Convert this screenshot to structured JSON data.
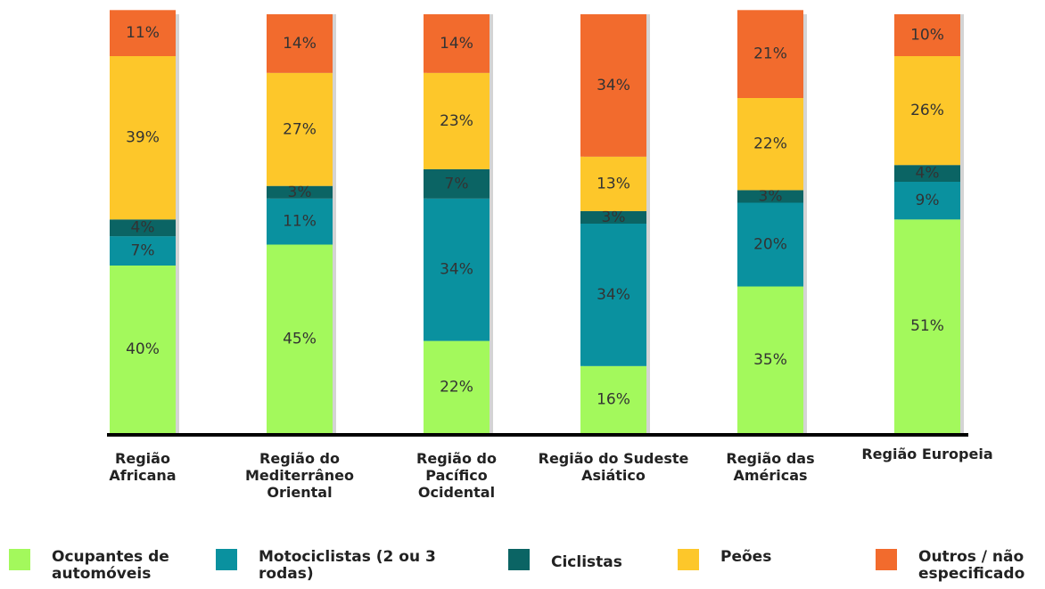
{
  "chart_data": {
    "type": "stacked_bar",
    "categories": [
      "Região Africana",
      "Região do Mediterrâneo Oriental",
      "Região do Pacífico Ocidental",
      "Região do Sudeste Asiático",
      "Região das Américas",
      "Região Europeia"
    ],
    "series": [
      {
        "name": "Ocupantes de automóveis",
        "color": "#a3f95c",
        "values": [
          40,
          45,
          22,
          16,
          35,
          51
        ],
        "value_labels": [
          "40%",
          "45%",
          "22%",
          "16%",
          "35%",
          "51%"
        ]
      },
      {
        "name": "Motociclistas (2 ou 3 rodas)",
        "color": "#0a919f",
        "values": [
          7,
          11,
          34,
          34,
          20,
          9
        ],
        "value_labels": [
          "7%",
          "11%",
          "34%",
          "34%",
          "20%",
          "9%"
        ]
      },
      {
        "name": "Ciclistas",
        "color": "#0b6464",
        "values": [
          4,
          3,
          7,
          3,
          3,
          4
        ],
        "value_labels": [
          "4%",
          "3%",
          "7%",
          "3%",
          "3%",
          "4%"
        ]
      },
      {
        "name": "Peões",
        "color": "#fdc72a",
        "values": [
          39,
          27,
          23,
          13,
          22,
          26
        ],
        "value_labels": [
          "39%",
          "27%",
          "23%",
          "13%",
          "22%",
          "26%"
        ]
      },
      {
        "name": "Outros / não especificado",
        "color": "#f26b2d",
        "values": [
          11,
          14,
          14,
          34,
          21,
          10
        ],
        "value_labels": [
          "11%",
          "14%",
          "14%",
          "34%",
          "21%",
          "10%"
        ]
      }
    ]
  }
}
